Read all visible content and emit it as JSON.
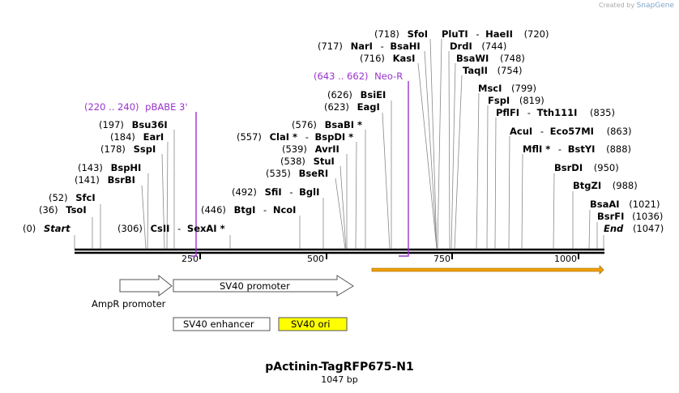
{
  "credit": {
    "prefix": "Created by",
    "brand": "SnapGene"
  },
  "plasmid": {
    "name": "pActinin-TagRFP675-N1",
    "length_label": "1047 bp"
  },
  "ticks": [
    "250",
    "500",
    "750",
    "1000"
  ],
  "sites_right": [
    {
      "pos": "(718)",
      "name": "SfoI"
    },
    {
      "pos": "(717)",
      "name": "NarI",
      "sep": "-",
      "name2": "BsaHI"
    },
    {
      "pos": "(716)",
      "name": "KasI"
    },
    {
      "pos": "(643 .. 662)",
      "name": "Neo-R"
    },
    {
      "pos": "(626)",
      "name": "BsiEI"
    },
    {
      "pos": "(623)",
      "name": "EagI"
    },
    {
      "pos": "(576)",
      "name": "BsaBI *"
    },
    {
      "pos": "(557)",
      "name": "ClaI *",
      "sep": "-",
      "name2": "BspDI *"
    },
    {
      "pos": "(539)",
      "name": "AvrII"
    },
    {
      "pos": "(538)",
      "name": "StuI"
    },
    {
      "pos": "(535)",
      "name": "BseRI"
    },
    {
      "pos": "(492)",
      "name": "SfiI",
      "sep": "-",
      "name2": "BglI"
    },
    {
      "pos": "(446)",
      "name": "BtgI",
      "sep": "-",
      "name2": "NcoI"
    },
    {
      "pos": "(220 .. 240)",
      "name": "pBABE 3'"
    },
    {
      "pos": "(197)",
      "name": "Bsu36I"
    },
    {
      "pos": "(184)",
      "name": "EarI"
    },
    {
      "pos": "(178)",
      "name": "SspI"
    },
    {
      "pos": "(143)",
      "name": "BspHI"
    },
    {
      "pos": "(141)",
      "name": "BsrBI"
    },
    {
      "pos": "(52)",
      "name": "SfcI"
    },
    {
      "pos": "(36)",
      "name": "TsoI"
    },
    {
      "pos": "(0)",
      "name": "Start"
    },
    {
      "pos": "(306)",
      "name": "CsII",
      "sep": "-",
      "name2": "SexAI *"
    }
  ],
  "sites_left": [
    {
      "name": "PluTI",
      "sep": "-",
      "name2": "HaeII",
      "pos": "(720)"
    },
    {
      "name": "DrdI",
      "pos": "(744)"
    },
    {
      "name": "BsaWI",
      "pos": "(748)"
    },
    {
      "name": "TaqII",
      "pos": "(754)"
    },
    {
      "name": "MscI",
      "pos": "(799)"
    },
    {
      "name": "FspI",
      "pos": "(819)"
    },
    {
      "name": "PflFI",
      "sep": "-",
      "name2": "Tth111I",
      "pos": "(835)"
    },
    {
      "name": "AcuI",
      "sep": "-",
      "name2": "Eco57MI",
      "pos": "(863)"
    },
    {
      "name": "MflI *",
      "sep": "-",
      "name2": "BstYI",
      "pos": "(888)"
    },
    {
      "name": "BsrDI",
      "pos": "(950)"
    },
    {
      "name": "BtgZI",
      "pos": "(988)"
    },
    {
      "name": "BsaAI",
      "pos": "(1021)"
    },
    {
      "name": "BsrFI",
      "pos": "(1036)"
    },
    {
      "name": "End",
      "pos": "(1047)"
    }
  ],
  "features": {
    "ampr_promoter": "AmpR promoter",
    "sv40_promoter": "SV40 promoter",
    "sv40_enhancer": "SV40 enhancer",
    "sv40_ori": "SV40 ori"
  },
  "colors": {
    "primer": "#9933cc",
    "ori": "#ffff00",
    "orf": "#f0a000",
    "backbone": "#000000"
  }
}
